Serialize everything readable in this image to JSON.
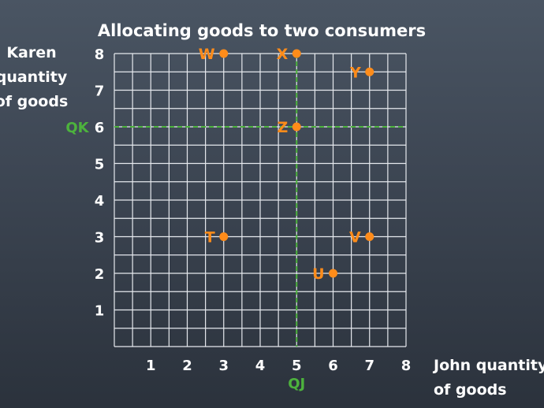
{
  "chart_data": {
    "type": "scatter",
    "title": "Allocating goods to two consumers",
    "xlabel": [
      "John quantity",
      "of goods"
    ],
    "ylabel": [
      "Karen",
      "quantity",
      "of goods"
    ],
    "xlim": [
      0,
      8
    ],
    "ylim": [
      0,
      8
    ],
    "x_ticks": [
      "1",
      "2",
      "3",
      "4",
      "5",
      "6",
      "7",
      "8"
    ],
    "y_ticks": [
      "1",
      "2",
      "3",
      "4",
      "5",
      "6",
      "7",
      "8"
    ],
    "grid": true,
    "reference_lines": [
      {
        "label": "QK",
        "axis": "y",
        "value": 6
      },
      {
        "label": "QJ",
        "axis": "x",
        "value": 5
      }
    ],
    "points": [
      {
        "label": "W",
        "x": 3,
        "y": 8
      },
      {
        "label": "X",
        "x": 5,
        "y": 8
      },
      {
        "label": "Y",
        "x": 7,
        "y": 7.5
      },
      {
        "label": "Z",
        "x": 5,
        "y": 6
      },
      {
        "label": "T",
        "x": 3,
        "y": 3
      },
      {
        "label": "V",
        "x": 7,
        "y": 3
      },
      {
        "label": "U",
        "x": 6,
        "y": 2
      }
    ],
    "colors": {
      "points": "#ff8c1a",
      "reference": "#4db33d",
      "grid": "#e6e9ee",
      "text": "#ffffff"
    }
  }
}
